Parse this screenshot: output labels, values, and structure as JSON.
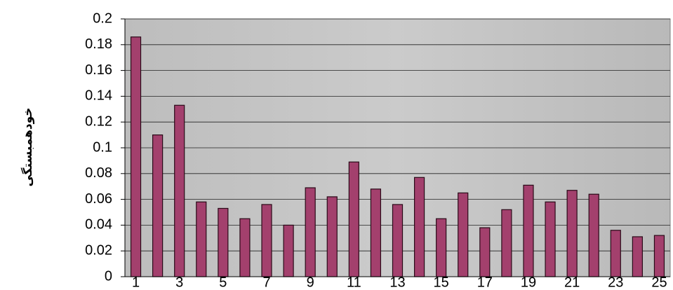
{
  "chart_data": {
    "type": "bar",
    "y_label": "خودهمبستگی",
    "categories": [
      "1",
      null,
      "3",
      null,
      "5",
      null,
      "7",
      null,
      "9",
      null,
      "11",
      null,
      "13",
      null,
      "15",
      null,
      "17",
      null,
      "19",
      null,
      "21",
      null,
      "23",
      null,
      "25"
    ],
    "values": [
      0.186,
      0.11,
      0.133,
      0.058,
      0.053,
      0.045,
      0.056,
      0.04,
      0.069,
      0.062,
      0.089,
      0.068,
      0.056,
      0.077,
      0.045,
      0.065,
      0.038,
      0.052,
      0.071,
      0.058,
      0.067,
      0.064,
      0.036,
      0.031,
      0.032
    ],
    "color": "#a3406d",
    "ylim": [
      0,
      0.2
    ],
    "yticks": [
      0,
      0.02,
      0.04,
      0.06,
      0.08,
      0.1,
      0.12,
      0.14,
      0.16,
      0.18,
      0.2
    ],
    "grid": true
  }
}
